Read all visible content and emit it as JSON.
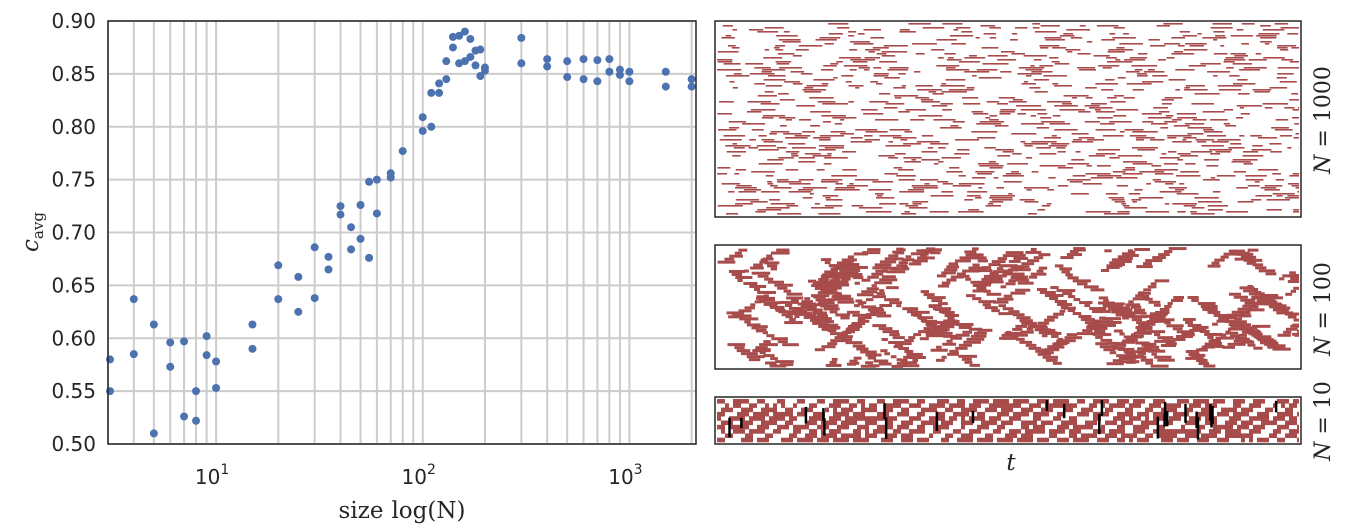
{
  "chart_data": [
    {
      "type": "scatter",
      "xlabel": "size",
      "xlabel_math": "log(N)",
      "ylabel": "c",
      "ylabel_sub": "avg",
      "xscale": "log",
      "xlim": [
        3,
        2100
      ],
      "ylim": [
        0.5,
        0.9
      ],
      "yticks": [
        "0.50",
        "0.55",
        "0.60",
        "0.65",
        "0.70",
        "0.75",
        "0.80",
        "0.85",
        "0.90"
      ],
      "xticks": [
        {
          "base": "10",
          "exp": "1",
          "value": 10
        },
        {
          "base": "10",
          "exp": "2",
          "value": 100
        },
        {
          "base": "10",
          "exp": "3",
          "value": 1000
        }
      ],
      "grid": true,
      "marker_color": "#4c72b0",
      "points": [
        [
          3,
          0.58
        ],
        [
          3,
          0.55
        ],
        [
          4,
          0.637
        ],
        [
          4,
          0.585
        ],
        [
          5,
          0.613
        ],
        [
          5,
          0.51
        ],
        [
          6,
          0.596
        ],
        [
          6,
          0.573
        ],
        [
          7,
          0.597
        ],
        [
          7,
          0.526
        ],
        [
          8,
          0.55
        ],
        [
          8,
          0.522
        ],
        [
          9,
          0.602
        ],
        [
          9,
          0.584
        ],
        [
          10,
          0.578
        ],
        [
          10,
          0.553
        ],
        [
          15,
          0.613
        ],
        [
          15,
          0.59
        ],
        [
          20,
          0.669
        ],
        [
          20,
          0.637
        ],
        [
          25,
          0.658
        ],
        [
          25,
          0.625
        ],
        [
          30,
          0.686
        ],
        [
          30,
          0.638
        ],
        [
          35,
          0.677
        ],
        [
          35,
          0.665
        ],
        [
          40,
          0.725
        ],
        [
          40,
          0.717
        ],
        [
          45,
          0.705
        ],
        [
          45,
          0.684
        ],
        [
          50,
          0.726
        ],
        [
          50,
          0.694
        ],
        [
          55,
          0.748
        ],
        [
          55,
          0.676
        ],
        [
          60,
          0.75
        ],
        [
          60,
          0.718
        ],
        [
          70,
          0.756
        ],
        [
          70,
          0.752
        ],
        [
          80,
          0.777
        ],
        [
          100,
          0.809
        ],
        [
          100,
          0.796
        ],
        [
          110,
          0.832
        ],
        [
          110,
          0.8
        ],
        [
          120,
          0.841
        ],
        [
          120,
          0.832
        ],
        [
          130,
          0.862
        ],
        [
          130,
          0.845
        ],
        [
          140,
          0.885
        ],
        [
          140,
          0.875
        ],
        [
          150,
          0.886
        ],
        [
          150,
          0.86
        ],
        [
          160,
          0.89
        ],
        [
          160,
          0.862
        ],
        [
          170,
          0.883
        ],
        [
          170,
          0.866
        ],
        [
          180,
          0.872
        ],
        [
          180,
          0.858
        ],
        [
          190,
          0.873
        ],
        [
          190,
          0.848
        ],
        [
          200,
          0.856
        ],
        [
          200,
          0.853
        ],
        [
          300,
          0.884
        ],
        [
          300,
          0.86
        ],
        [
          400,
          0.864
        ],
        [
          400,
          0.857
        ],
        [
          500,
          0.862
        ],
        [
          500,
          0.847
        ],
        [
          600,
          0.864
        ],
        [
          600,
          0.845
        ],
        [
          700,
          0.863
        ],
        [
          700,
          0.843
        ],
        [
          800,
          0.864
        ],
        [
          800,
          0.852
        ],
        [
          900,
          0.854
        ],
        [
          900,
          0.849
        ],
        [
          1000,
          0.852
        ],
        [
          1000,
          0.843
        ],
        [
          1500,
          0.852
        ],
        [
          1500,
          0.838
        ],
        [
          2000,
          0.845
        ],
        [
          2000,
          0.838
        ]
      ]
    },
    {
      "type": "heatmap",
      "label_N": "N",
      "label_value": "1000",
      "colors": {
        "active": "#a84b4b",
        "background": "#ffffff"
      },
      "pattern": "sparse short horizontal dashes"
    },
    {
      "type": "heatmap",
      "label_N": "N",
      "label_value": "100",
      "colors": {
        "active": "#a84b4b",
        "background": "#ffffff"
      },
      "pattern": "irregular diagonal blobs"
    },
    {
      "type": "heatmap",
      "label_N": "N",
      "label_value": "10",
      "xlabel": "t",
      "colors": {
        "active": "#a84b4b",
        "background": "#ffffff",
        "accent": "#000000"
      },
      "pattern": "dense diagonal stripes"
    }
  ]
}
